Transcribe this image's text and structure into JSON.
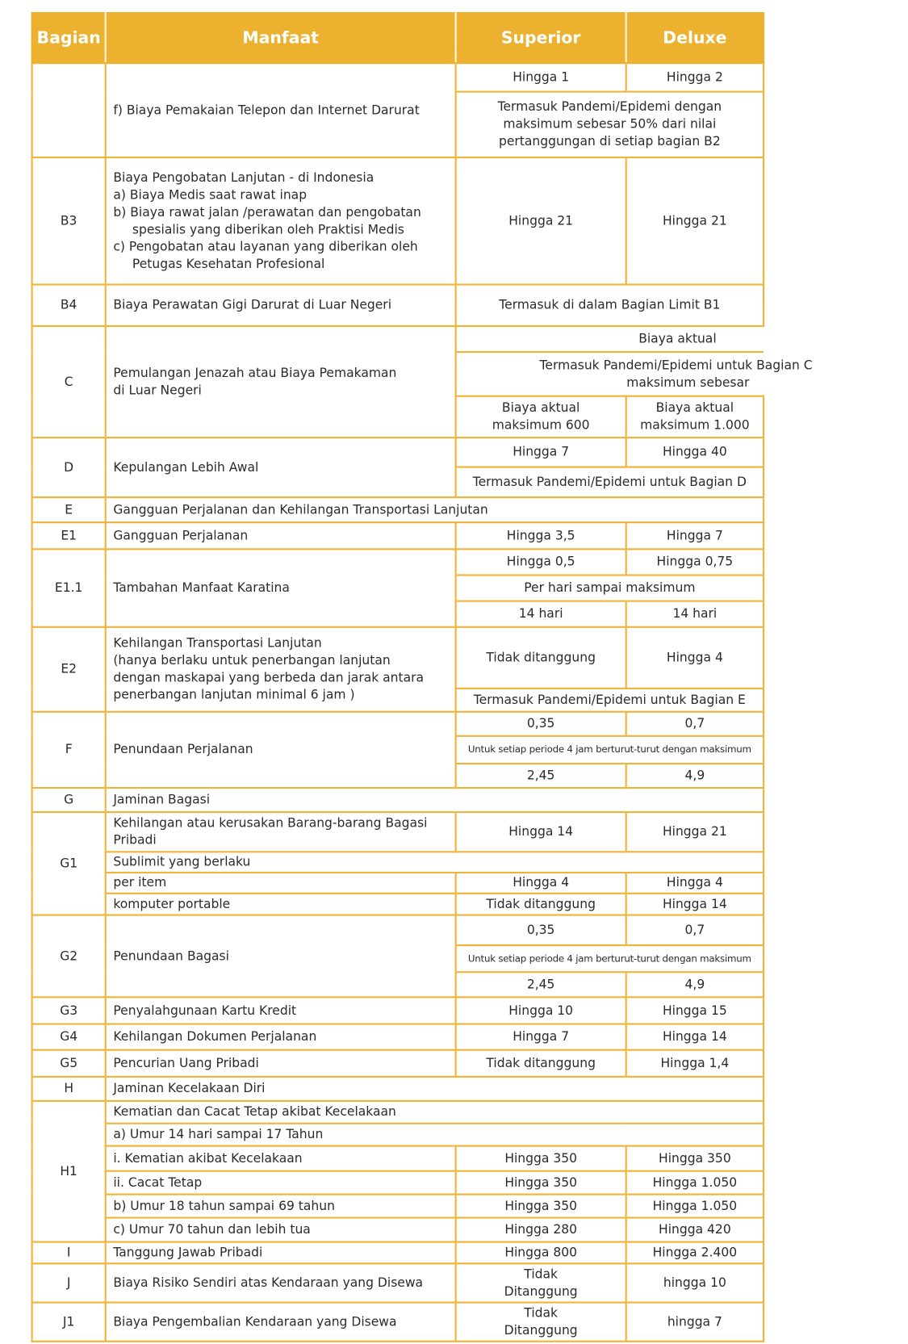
{
  "colors": {
    "header_bg": "#ebb12f",
    "border": "#f0b43a",
    "header_text": "#ffffff"
  },
  "header": {
    "bagian": "Bagian",
    "manfaat": "Manfaat",
    "superior": "Superior",
    "deluxe": "Deluxe"
  },
  "rows": {
    "f": {
      "bagian": "",
      "manfaat": "f) Biaya Pemakaian Telepon dan Internet Darurat",
      "superior": "Hingga 1",
      "deluxe": "Hingga 2",
      "note": [
        "Termasuk Pandemi/Epidemi dengan",
        "maksimum sebesar 50% dari nilai",
        "pertanggungan di setiap bagian B2"
      ]
    },
    "b3": {
      "bagian": "B3",
      "manfaat": [
        "Biaya Pengobatan Lanjutan - di Indonesia",
        "a) Biaya Medis saat rawat inap",
        "b) Biaya rawat jalan /perawatan dan pengobatan spesialis yang diberikan oleh Praktisi Medis",
        "c) Pengobatan atau layanan yang diberikan oleh Petugas Kesehatan Profesional"
      ],
      "superior": "Hingga 21",
      "deluxe": "Hingga 21"
    },
    "b4": {
      "bagian": "B4",
      "manfaat": "Biaya Perawatan Gigi Darurat di Luar Negeri",
      "value": "Termasuk di dalam Bagian Limit B1"
    },
    "c": {
      "bagian": "C",
      "manfaat": [
        "Pemulangan Jenazah atau Biaya Pemakaman",
        "di Luar Negeri"
      ],
      "value1": "Biaya aktual",
      "value2": [
        "Termasuk Pandemi/Epidemi untuk Bagian C",
        "maksimum sebesar"
      ],
      "superior": [
        "Biaya aktual",
        "maksimum 600"
      ],
      "deluxe": [
        "Biaya aktual",
        "maksimum 1.000"
      ]
    },
    "d": {
      "bagian": "D",
      "manfaat": "Kepulangan Lebih Awal",
      "superior": "Hingga 7",
      "deluxe": "Hingga 40",
      "note": "Termasuk Pandemi/Epidemi untuk Bagian D"
    },
    "e": {
      "bagian": "E",
      "manfaat": "Gangguan Perjalanan dan Kehilangan Transportasi Lanjutan"
    },
    "e1": {
      "bagian": "E1",
      "manfaat": "Gangguan Perjalanan",
      "superior": "Hingga 3,5",
      "deluxe": "Hingga 7"
    },
    "e11": {
      "bagian": "E1.1",
      "manfaat": "Tambahan Manfaat Karatina",
      "superior": "Hingga 0,5",
      "deluxe": "Hingga 0,75",
      "note": "Per hari sampai maksimum",
      "superior_max": "14 hari",
      "deluxe_max": "14 hari"
    },
    "e2": {
      "bagian": "E2",
      "manfaat": [
        "Kehilangan Transportasi Lanjutan",
        "(hanya berlaku untuk penerbangan lanjutan",
        "dengan maskapai yang berbeda dan jarak antara",
        "penerbangan lanjutan minimal 6 jam )"
      ],
      "superior": "Tidak ditanggung",
      "deluxe": "Hingga 4",
      "note": "Termasuk Pandemi/Epidemi untuk Bagian E"
    },
    "f2": {
      "bagian": "F",
      "manfaat": "Penundaan Perjalanan",
      "superior": "0,35",
      "deluxe": "0,7",
      "note": "Untuk setiap periode 4 jam berturut-turut dengan maksimum",
      "superior_max": "2,45",
      "deluxe_max": "4,9"
    },
    "g": {
      "bagian": "G",
      "manfaat": "Jaminan Bagasi"
    },
    "g1": {
      "bagian": "G1",
      "manfaat": [
        "Kehilangan atau kerusakan Barang-barang Bagasi",
        "Pribadi"
      ],
      "superior": "Hingga 14",
      "deluxe": "Hingga 21",
      "sublimit": "Sublimit yang berlaku",
      "per_item": {
        "label": "per item",
        "superior": "Hingga 4",
        "deluxe": "Hingga 4"
      },
      "komputer": {
        "label": "komputer portable",
        "superior": "Tidak ditanggung",
        "deluxe": "Hingga 14"
      }
    },
    "g2": {
      "bagian": "G2",
      "manfaat": "Penundaan Bagasi",
      "superior": "0,35",
      "deluxe": "0,7",
      "note": "Untuk setiap periode 4 jam berturut-turut dengan maksimum",
      "superior_max": "2,45",
      "deluxe_max": "4,9"
    },
    "g3": {
      "bagian": "G3",
      "manfaat": "Penyalahgunaan Kartu Kredit",
      "superior": "Hingga 10",
      "deluxe": "Hingga 15"
    },
    "g4": {
      "bagian": "G4",
      "manfaat": "Kehilangan Dokumen Perjalanan",
      "superior": "Hingga 7",
      "deluxe": "Hingga 14"
    },
    "g5": {
      "bagian": "G5",
      "manfaat": "Pencurian Uang Pribadi",
      "superior": "Tidak ditanggung",
      "deluxe": "Hingga 1,4"
    },
    "h": {
      "bagian": "H",
      "manfaat": "Jaminan Kecelakaan Diri"
    },
    "h1": {
      "bagian": "H1",
      "title": "Kematian dan Cacat Tetap akibat Kecelakaan",
      "a": "a) Umur 14 hari sampai 17 Tahun",
      "ai": {
        "label": "i. Kematian akibat Kecelakaan",
        "superior": "Hingga 350",
        "deluxe": "Hingga 350"
      },
      "aii": {
        "label": "ii. Cacat Tetap",
        "superior": "Hingga 350",
        "deluxe": "Hingga 1.050"
      },
      "b": {
        "label": "b) Umur 18 tahun sampai 69 tahun",
        "superior": "Hingga 350",
        "deluxe": "Hingga 1.050"
      },
      "c": {
        "label": "c)  Umur 70 tahun dan lebih tua",
        "superior": "Hingga 280",
        "deluxe": "Hingga 420"
      }
    },
    "i": {
      "bagian": "I",
      "manfaat": "Tanggung Jawab Pribadi",
      "superior": "Hingga 800",
      "deluxe": "Hingga 2.400"
    },
    "j": {
      "bagian": "J",
      "manfaat": "Biaya Risiko Sendiri atas Kendaraan yang Disewa",
      "superior": [
        "Tidak",
        "Ditanggung"
      ],
      "deluxe": "hingga 10"
    },
    "j1": {
      "bagian": "J1",
      "manfaat": "Biaya Pengembalian Kendaraan yang Disewa",
      "superior": [
        "Tidak",
        "Ditanggung"
      ],
      "deluxe": "hingga 7"
    }
  }
}
